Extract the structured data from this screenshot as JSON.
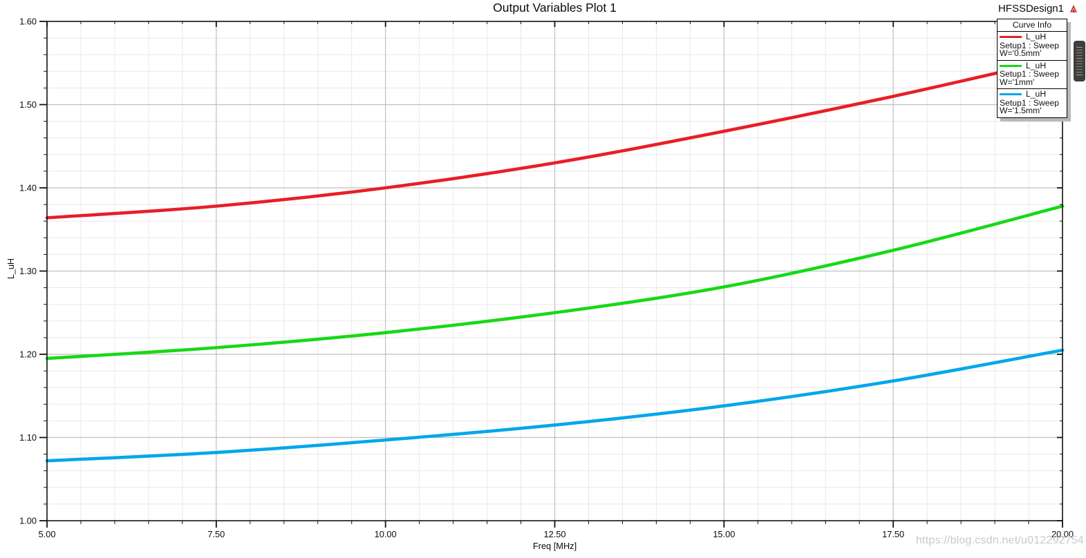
{
  "header": {
    "title": "Output Variables Plot 1",
    "design_name": "HFSSDesign1",
    "logo_icon": "ansoft-triangle-icon",
    "logo_color": "#c03028"
  },
  "watermark": "https://blog.csdn.net/u012292754",
  "legend": {
    "title": "Curve Info",
    "entries": [
      {
        "series": "L_uH",
        "setup": "Setup1 : Sweep",
        "variation": "W='0.5mm'",
        "color": "#e81e26"
      },
      {
        "series": "L_uH",
        "setup": "Setup1 : Sweep",
        "variation": "W='1mm'",
        "color": "#16d916"
      },
      {
        "series": "L_uH",
        "setup": "Setup1 : Sweep",
        "variation": "W='1.5mm'",
        "color": "#00a7ea"
      }
    ]
  },
  "side_widget": {
    "name": "scroll-minimap",
    "lines": [
      "#9a9a9a",
      "#8a8a8a",
      "#8a8a8a",
      "#7f7f7f",
      "#d98a2b",
      "#8a8a8a",
      "#8a8a8a",
      "#8a8a8a",
      "#7f7f7f",
      "#8a8a8a",
      "#7dc242"
    ]
  },
  "chart_data": {
    "type": "line",
    "title": "Output Variables Plot 1",
    "xlabel": "Freq [MHz]",
    "ylabel": "L_uH",
    "xlim": [
      5.0,
      20.0
    ],
    "ylim": [
      1.0,
      1.6
    ],
    "x_major_ticks": [
      5.0,
      7.5,
      10.0,
      12.5,
      15.0,
      17.5,
      20.0
    ],
    "x_tick_labels": [
      "5.00",
      "7.50",
      "10.00",
      "12.50",
      "15.00",
      "17.50",
      "20.00"
    ],
    "y_major_ticks": [
      1.0,
      1.1,
      1.2,
      1.3,
      1.4,
      1.5,
      1.6
    ],
    "y_tick_labels": [
      "1.00",
      "1.10",
      "1.20",
      "1.30",
      "1.40",
      "1.50",
      "1.60"
    ],
    "x_minor_step": 0.5,
    "y_minor_step": 0.02,
    "grid": true,
    "legend_position": "top-right",
    "x": [
      5.0,
      7.5,
      10.0,
      12.5,
      15.0,
      17.5,
      20.0
    ],
    "series": [
      {
        "name": "L_uH Setup1 : Sweep W='0.5mm'",
        "color": "#e81e26",
        "values": [
          1.364,
          1.378,
          1.4,
          1.43,
          1.468,
          1.51,
          1.556
        ]
      },
      {
        "name": "L_uH Setup1 : Sweep W='1mm'",
        "color": "#16d916",
        "values": [
          1.195,
          1.208,
          1.226,
          1.25,
          1.281,
          1.325,
          1.378
        ]
      },
      {
        "name": "L_uH Setup1 : Sweep W='1.5mm'",
        "color": "#00a7ea",
        "values": [
          1.072,
          1.082,
          1.097,
          1.115,
          1.138,
          1.168,
          1.205
        ]
      }
    ],
    "grid_minor_color": "#e8e8e8",
    "grid_major_color": "#bfbfbf",
    "axis_color": "#111111"
  }
}
